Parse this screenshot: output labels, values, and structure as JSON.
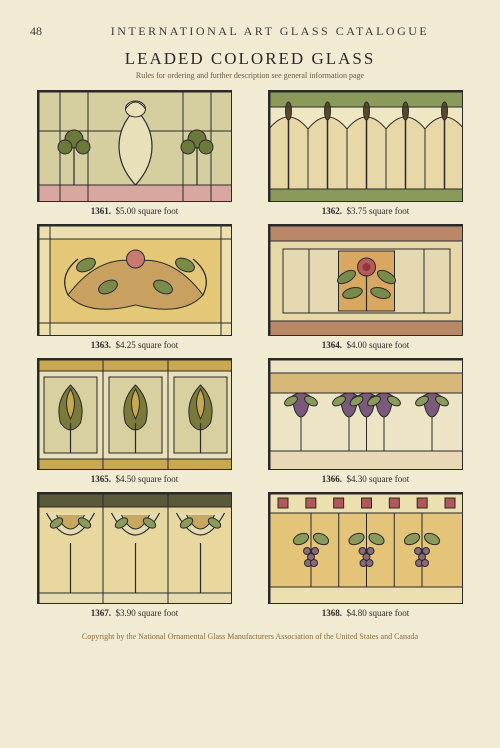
{
  "page_number": "48",
  "running_head": "INTERNATIONAL ART GLASS CATALOGUE",
  "title": "LEADED COLORED GLASS",
  "subtitle": "Rules for ordering and further description see general information page",
  "copyright": "Copyright by the National Ornamental Glass Manufacturers Association of the United States and Canada",
  "panels": [
    {
      "number": "1361.",
      "price": "$5.00 square foot",
      "colors": {
        "bg": "#d5cfa0",
        "accent1": "#6b7a3a",
        "accent2": "#6a4a2a",
        "cream": "#e8e0b8",
        "pink": "#d8a8a0",
        "line": "#2a2a2a"
      }
    },
    {
      "number": "1362.",
      "price": "$3.75 square foot",
      "colors": {
        "bg": "#e8d8a8",
        "accent1": "#a88858",
        "accent2": "#5a4a2a",
        "cream": "#efe6c2",
        "green": "#8a9a5a",
        "line": "#2a2a2a"
      }
    },
    {
      "number": "1363.",
      "price": "$4.25 square foot",
      "colors": {
        "bg": "#e4c878",
        "accent1": "#7a8a4a",
        "accent2": "#c8a060",
        "cream": "#ece0b0",
        "rose": "#c87a70",
        "line": "#2a2a2a"
      }
    },
    {
      "number": "1364.",
      "price": "$4.00 square foot",
      "colors": {
        "bg": "#e4d8b0",
        "accent1": "#b88868",
        "accent2": "#7a8a4a",
        "cream": "#e8d8a8",
        "rose": "#b85a5a",
        "amber": "#d8a860",
        "line": "#2a2a2a"
      }
    },
    {
      "number": "1365.",
      "price": "$4.50 square foot",
      "colors": {
        "bg": "#d8d0a0",
        "accent1": "#7a7a3a",
        "accent2": "#c8a850",
        "cream": "#e8e0b8",
        "dark": "#4a4a2a",
        "line": "#2a2a2a"
      }
    },
    {
      "number": "1366.",
      "price": "$4.30 square foot",
      "colors": {
        "bg": "#e8d8b8",
        "accent1": "#8a9a5a",
        "accent2": "#7a5a7a",
        "cream": "#ece4c4",
        "amber": "#d8b878",
        "line": "#2a2a2a"
      }
    },
    {
      "number": "1367.",
      "price": "$3.90 square foot",
      "colors": {
        "bg": "#e8d8a0",
        "accent1": "#8a9a5a",
        "accent2": "#c8a860",
        "cream": "#e4dcb0",
        "dark": "#5a5a3a",
        "line": "#2a2a2a"
      }
    },
    {
      "number": "1368.",
      "price": "$4.80 square foot",
      "colors": {
        "bg": "#e4c478",
        "accent1": "#b0585a",
        "accent2": "#8a9a5a",
        "cream": "#ece0b0",
        "purple": "#8a6a7a",
        "line": "#2a2a2a"
      }
    }
  ]
}
